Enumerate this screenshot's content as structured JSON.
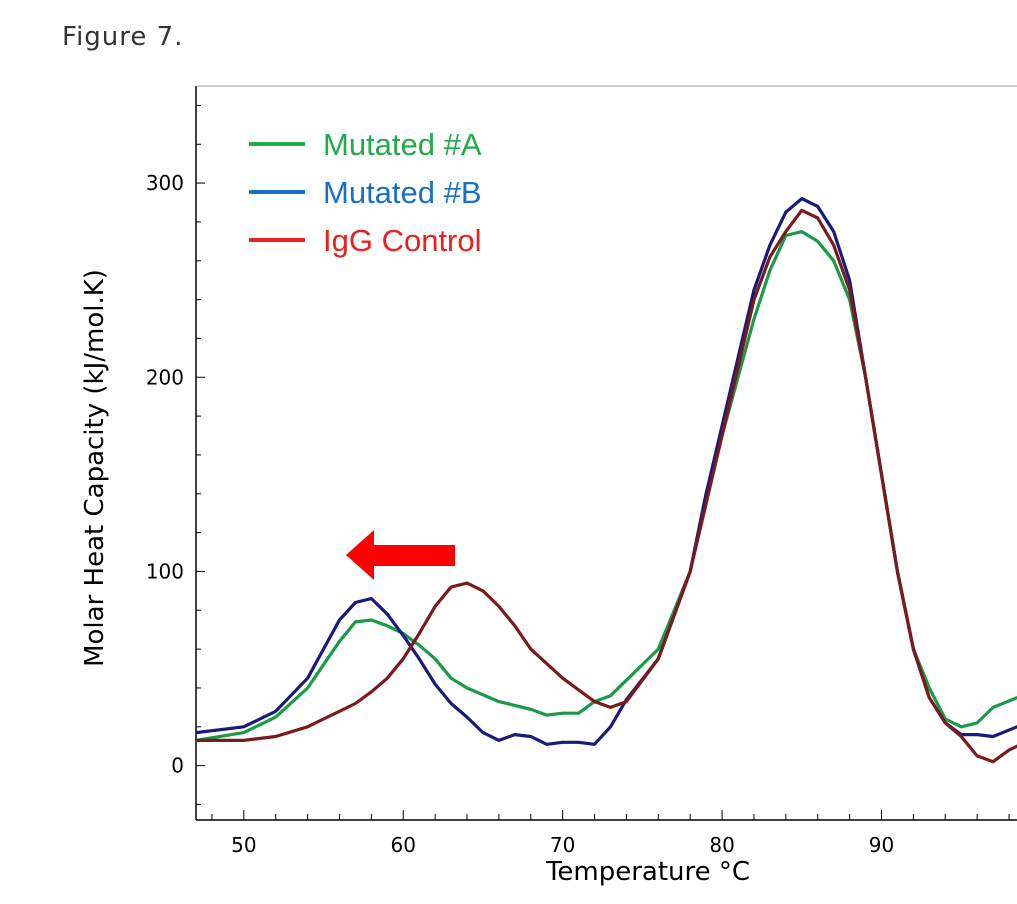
{
  "figure_label": "Figure 7.",
  "chart_data": {
    "type": "line",
    "title": "",
    "xlabel": "Temperature °C",
    "ylabel": "Molar Heat Capacity (kJ/mol.K)",
    "xlim": [
      47,
      98.5
    ],
    "ylim": [
      -28,
      350
    ],
    "xticks": [
      50,
      60,
      70,
      80,
      90
    ],
    "yticks": [
      0,
      100,
      200,
      300
    ],
    "grid": false,
    "legend_position": "top-left",
    "annotation": {
      "type": "arrow",
      "direction": "left",
      "color": "#ff0000"
    },
    "series": [
      {
        "name": "Mutated #A",
        "color": "#1a9a48",
        "legend_color": "#22aa4b",
        "points": [
          [
            47,
            13
          ],
          [
            50,
            17
          ],
          [
            52,
            25
          ],
          [
            54,
            40
          ],
          [
            55,
            52
          ],
          [
            56,
            64
          ],
          [
            57,
            74
          ],
          [
            58,
            75
          ],
          [
            59,
            72
          ],
          [
            60,
            68
          ],
          [
            61,
            62
          ],
          [
            62,
            55
          ],
          [
            63,
            45
          ],
          [
            64,
            40
          ],
          [
            66,
            33
          ],
          [
            68,
            29
          ],
          [
            69,
            26
          ],
          [
            70,
            27
          ],
          [
            71,
            27
          ],
          [
            72,
            33
          ],
          [
            73,
            36
          ],
          [
            74,
            44
          ],
          [
            76,
            60
          ],
          [
            78,
            100
          ],
          [
            79,
            140
          ],
          [
            80,
            170
          ],
          [
            81,
            200
          ],
          [
            82,
            230
          ],
          [
            83,
            255
          ],
          [
            84,
            273
          ],
          [
            85,
            275
          ],
          [
            86,
            270
          ],
          [
            87,
            260
          ],
          [
            88,
            240
          ],
          [
            89,
            200
          ],
          [
            90,
            150
          ],
          [
            91,
            100
          ],
          [
            92,
            60
          ],
          [
            93,
            40
          ],
          [
            94,
            24
          ],
          [
            95,
            20
          ],
          [
            96,
            22
          ],
          [
            97,
            30
          ],
          [
            98.5,
            35
          ]
        ]
      },
      {
        "name": "Mutated #B",
        "color": "#1a1a7a",
        "legend_color": "#1a6fc4",
        "points": [
          [
            47,
            17
          ],
          [
            50,
            20
          ],
          [
            52,
            28
          ],
          [
            54,
            45
          ],
          [
            55,
            60
          ],
          [
            56,
            75
          ],
          [
            57,
            84
          ],
          [
            58,
            86
          ],
          [
            59,
            78
          ],
          [
            60,
            67
          ],
          [
            61,
            55
          ],
          [
            62,
            42
          ],
          [
            63,
            32
          ],
          [
            64,
            25
          ],
          [
            65,
            17
          ],
          [
            66,
            13
          ],
          [
            67,
            16
          ],
          [
            68,
            15
          ],
          [
            69,
            11
          ],
          [
            70,
            12
          ],
          [
            71,
            12
          ],
          [
            72,
            11
          ],
          [
            73,
            20
          ],
          [
            74,
            34
          ],
          [
            76,
            55
          ],
          [
            78,
            100
          ],
          [
            79,
            140
          ],
          [
            80,
            175
          ],
          [
            81,
            210
          ],
          [
            82,
            245
          ],
          [
            83,
            268
          ],
          [
            84,
            285
          ],
          [
            85,
            292
          ],
          [
            86,
            288
          ],
          [
            87,
            275
          ],
          [
            88,
            250
          ],
          [
            89,
            200
          ],
          [
            90,
            150
          ],
          [
            91,
            100
          ],
          [
            92,
            60
          ],
          [
            93,
            35
          ],
          [
            94,
            22
          ],
          [
            95,
            16
          ],
          [
            96,
            16
          ],
          [
            97,
            15
          ],
          [
            98.5,
            20
          ]
        ]
      },
      {
        "name": "IgG Control",
        "color": "#7a1a1a",
        "legend_color": "#e8201e",
        "points": [
          [
            47,
            13
          ],
          [
            50,
            13
          ],
          [
            52,
            15
          ],
          [
            54,
            20
          ],
          [
            55,
            24
          ],
          [
            56,
            28
          ],
          [
            57,
            32
          ],
          [
            58,
            38
          ],
          [
            59,
            45
          ],
          [
            60,
            55
          ],
          [
            61,
            68
          ],
          [
            62,
            82
          ],
          [
            63,
            92
          ],
          [
            64,
            94
          ],
          [
            65,
            90
          ],
          [
            66,
            82
          ],
          [
            67,
            72
          ],
          [
            68,
            60
          ],
          [
            70,
            45
          ],
          [
            72,
            33
          ],
          [
            73,
            30
          ],
          [
            74,
            33
          ],
          [
            76,
            55
          ],
          [
            78,
            100
          ],
          [
            79,
            135
          ],
          [
            80,
            170
          ],
          [
            81,
            205
          ],
          [
            82,
            240
          ],
          [
            83,
            262
          ],
          [
            84,
            275
          ],
          [
            85,
            286
          ],
          [
            86,
            282
          ],
          [
            87,
            268
          ],
          [
            88,
            245
          ],
          [
            89,
            200
          ],
          [
            90,
            150
          ],
          [
            91,
            100
          ],
          [
            92,
            60
          ],
          [
            93,
            35
          ],
          [
            94,
            22
          ],
          [
            95,
            15
          ],
          [
            96,
            5
          ],
          [
            97,
            2
          ],
          [
            98,
            8
          ],
          [
            98.5,
            10
          ]
        ]
      }
    ]
  }
}
